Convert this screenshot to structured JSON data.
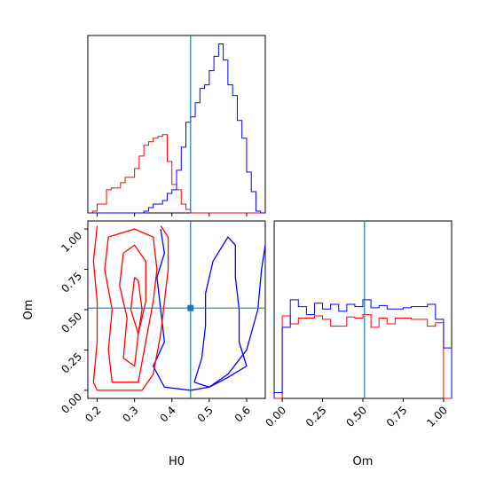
{
  "chart_data": {
    "type": "corner",
    "parameters": [
      "H0",
      "Om"
    ],
    "truth": {
      "H0": 0.45,
      "Om": 0.51
    },
    "series_colors": {
      "blue": "#0000ff",
      "red": "#ff0000",
      "truth": "#1f77b4"
    },
    "grid": false,
    "panels": {
      "h0_histogram": {
        "type": "step-histogram",
        "x_range": [
          0.175,
          0.65
        ],
        "x_ticks": [
          0.2,
          0.3,
          0.4,
          0.5,
          0.6
        ],
        "bin_edges": [
          0.175,
          0.1875,
          0.2,
          0.2125,
          0.225,
          0.2375,
          0.25,
          0.2625,
          0.275,
          0.2875,
          0.3,
          0.3125,
          0.325,
          0.3375,
          0.35,
          0.3625,
          0.375,
          0.3875,
          0.4,
          0.4125,
          0.425,
          0.4375,
          0.45,
          0.4625,
          0.475,
          0.4875,
          0.5,
          0.5125,
          0.525,
          0.5375,
          0.55,
          0.5625,
          0.575,
          0.5875,
          0.6,
          0.6125,
          0.625,
          0.6375,
          0.65
        ],
        "red_counts": [
          0,
          1,
          5,
          5,
          13,
          14,
          14,
          17,
          20,
          20,
          25,
          32,
          38,
          40,
          42,
          43,
          44,
          29,
          16,
          13,
          5,
          2,
          0,
          0,
          0,
          0,
          0,
          0,
          0,
          0,
          0,
          0,
          0,
          0,
          0,
          0,
          0,
          0
        ],
        "blue_counts": [
          0,
          0,
          0,
          0,
          0,
          0,
          0,
          0,
          0,
          0,
          0,
          0,
          1,
          3,
          5,
          5,
          7,
          11,
          13,
          24,
          37,
          51,
          54,
          62,
          70,
          72,
          80,
          88,
          95,
          86,
          72,
          66,
          52,
          42,
          23,
          12,
          1,
          0
        ]
      },
      "om_histogram": {
        "type": "step-histogram",
        "x_range": [
          -0.05,
          1.05
        ],
        "x_ticks": [
          "0.00",
          "0.25",
          "0.50",
          "0.75",
          "1.00"
        ],
        "bin_edges": [
          -0.05,
          0.0,
          0.05,
          0.1,
          0.15,
          0.2,
          0.25,
          0.3,
          0.35,
          0.4,
          0.45,
          0.5,
          0.55,
          0.6,
          0.65,
          0.7,
          0.75,
          0.8,
          0.85,
          0.9,
          0.95,
          1.0,
          1.05
        ],
        "red_counts": [
          0,
          72,
          65,
          70,
          70,
          72,
          69,
          63,
          63,
          71,
          70,
          73,
          62,
          70,
          65,
          70,
          70,
          69,
          69,
          63,
          66,
          0
        ],
        "blue_counts": [
          5,
          62,
          86,
          80,
          73,
          83,
          78,
          82,
          76,
          82,
          80,
          86,
          79,
          81,
          78,
          78,
          79,
          80,
          80,
          82,
          69,
          44
        ]
      },
      "h0_om_contours": {
        "type": "contour",
        "x_range": [
          0.175,
          0.65
        ],
        "y_range": [
          -0.05,
          1.05
        ],
        "x_ticks": [
          0.2,
          0.3,
          0.4,
          0.5,
          0.6
        ],
        "y_ticks": [
          "0.00",
          "0.25",
          "0.50",
          "0.75",
          "1.00"
        ],
        "blue_levels": [
          [
            [
              0.37,
              1.0
            ],
            [
              0.38,
              0.85
            ],
            [
              0.36,
              0.7
            ],
            [
              0.37,
              0.5
            ],
            [
              0.38,
              0.3
            ],
            [
              0.35,
              0.15
            ],
            [
              0.38,
              0.02
            ],
            [
              0.45,
              0.0
            ],
            [
              0.5,
              0.02
            ],
            [
              0.55,
              0.1
            ],
            [
              0.6,
              0.25
            ],
            [
              0.63,
              0.5
            ],
            [
              0.64,
              0.75
            ],
            [
              0.65,
              0.9
            ]
          ],
          [
            [
              0.46,
              0.05
            ],
            [
              0.48,
              0.2
            ],
            [
              0.49,
              0.4
            ],
            [
              0.49,
              0.6
            ],
            [
              0.51,
              0.8
            ],
            [
              0.55,
              0.95
            ],
            [
              0.57,
              0.9
            ],
            [
              0.57,
              0.7
            ],
            [
              0.58,
              0.5
            ],
            [
              0.58,
              0.3
            ],
            [
              0.6,
              0.15
            ],
            [
              0.55,
              0.08
            ],
            [
              0.5,
              0.02
            ],
            [
              0.46,
              0.05
            ]
          ]
        ],
        "red_levels": [
          [
            [
              0.2,
              1.02
            ],
            [
              0.19,
              0.8
            ],
            [
              0.2,
              0.55
            ],
            [
              0.2,
              0.3
            ],
            [
              0.19,
              0.05
            ],
            [
              0.2,
              0.0
            ],
            [
              0.32,
              0.0
            ],
            [
              0.35,
              0.1
            ],
            [
              0.37,
              0.35
            ],
            [
              0.38,
              0.55
            ],
            [
              0.39,
              0.75
            ],
            [
              0.39,
              0.95
            ],
            [
              0.37,
              1.02
            ]
          ],
          [
            [
              0.23,
              0.95
            ],
            [
              0.22,
              0.75
            ],
            [
              0.24,
              0.5
            ],
            [
              0.23,
              0.25
            ],
            [
              0.24,
              0.05
            ],
            [
              0.31,
              0.05
            ],
            [
              0.33,
              0.3
            ],
            [
              0.35,
              0.55
            ],
            [
              0.36,
              0.75
            ],
            [
              0.35,
              0.95
            ],
            [
              0.3,
              1.0
            ],
            [
              0.23,
              0.95
            ]
          ],
          [
            [
              0.27,
              0.85
            ],
            [
              0.26,
              0.65
            ],
            [
              0.28,
              0.45
            ],
            [
              0.27,
              0.2
            ],
            [
              0.3,
              0.15
            ],
            [
              0.31,
              0.35
            ],
            [
              0.33,
              0.55
            ],
            [
              0.33,
              0.8
            ],
            [
              0.3,
              0.9
            ],
            [
              0.27,
              0.85
            ]
          ],
          [
            [
              0.3,
              0.7
            ],
            [
              0.29,
              0.5
            ],
            [
              0.31,
              0.35
            ],
            [
              0.32,
              0.5
            ],
            [
              0.31,
              0.68
            ],
            [
              0.3,
              0.7
            ]
          ]
        ]
      }
    },
    "xlabel_h0": "H0",
    "xlabel_om": "Om",
    "ylabel_om": "Om"
  }
}
